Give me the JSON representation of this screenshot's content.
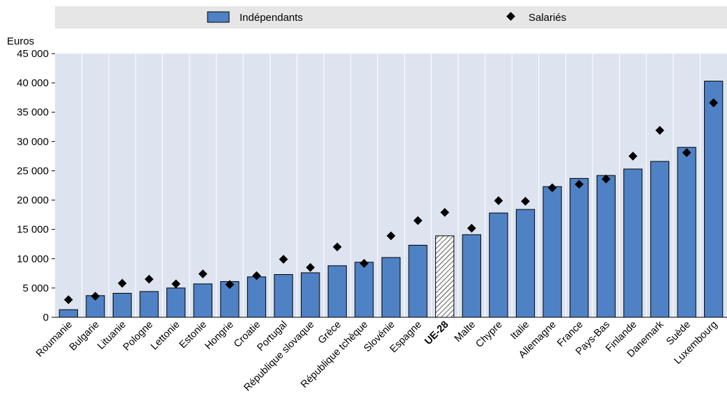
{
  "chart_data": {
    "type": "bar",
    "y_unit_label": "Euros",
    "ylim": [
      0,
      45000
    ],
    "yticks": [
      0,
      5000,
      10000,
      15000,
      20000,
      25000,
      30000,
      35000,
      40000,
      45000
    ],
    "ytick_labels": [
      "0",
      "5 000",
      "10 000",
      "15 000",
      "20 000",
      "25 000",
      "30 000",
      "35 000",
      "40 000",
      "45 000"
    ],
    "grid": "vertical-separators",
    "legend_position": "top",
    "highlight_category": "UE-28",
    "categories": [
      "Roumanie",
      "Bulgarie",
      "Lituanie",
      "Pologne",
      "Lettonie",
      "Estonie",
      "Hongrie",
      "Croatie",
      "Portugal",
      "République slovaque",
      "Grèce",
      "République tchèque",
      "Slovénie",
      "Espagne",
      "UE-28",
      "Malte",
      "Chypre",
      "Italie",
      "Allemagne",
      "France",
      "Pays-Bas",
      "Finlande",
      "Danemark",
      "Suède",
      "Luxembourg"
    ],
    "series": [
      {
        "name": "Indépendants",
        "mark": "bar",
        "color": "#4f81c5",
        "values": [
          1300,
          3700,
          4100,
          4400,
          5000,
          5700,
          6100,
          6900,
          7300,
          7600,
          8800,
          9400,
          10200,
          12300,
          13900,
          14100,
          17800,
          18400,
          22300,
          23700,
          24200,
          25300,
          26600,
          29000,
          40300
        ]
      },
      {
        "name": "Salariés",
        "mark": "diamond",
        "color": "#000000",
        "values": [
          3000,
          3600,
          5800,
          6500,
          5700,
          7400,
          5600,
          7100,
          9900,
          8500,
          12000,
          9200,
          13900,
          16500,
          17900,
          15200,
          19900,
          19800,
          22100,
          22700,
          23600,
          27500,
          31900,
          28100,
          36600
        ]
      }
    ]
  }
}
